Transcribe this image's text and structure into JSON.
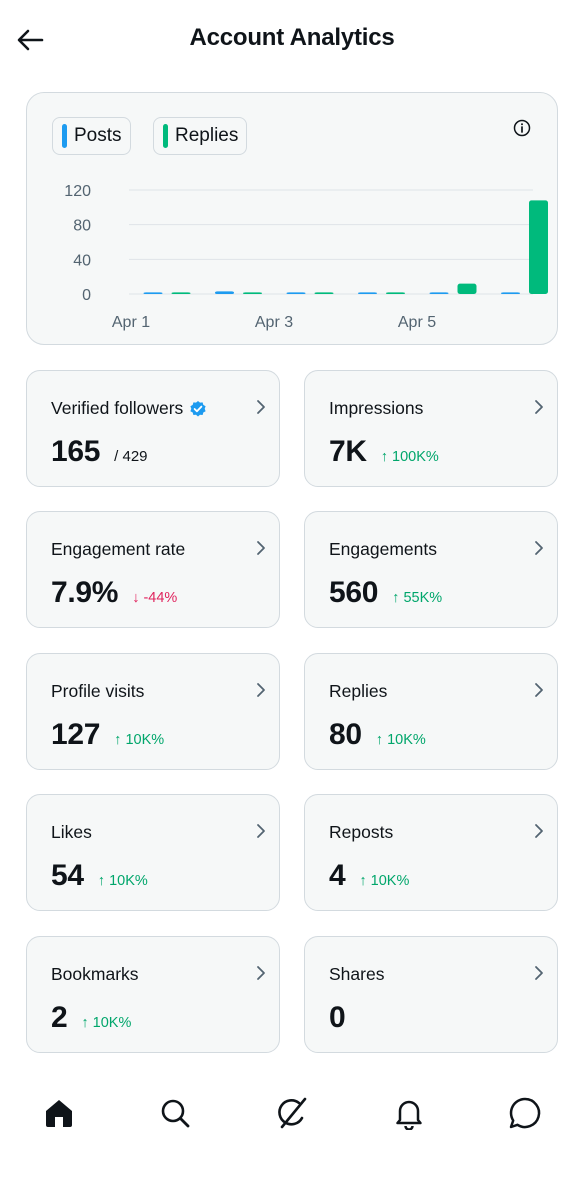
{
  "header": {
    "title": "Account Analytics"
  },
  "chart_data": {
    "type": "bar",
    "categories": [
      "Apr 1",
      "Apr 2",
      "Apr 3",
      "Apr 4",
      "Apr 5",
      "Apr 6"
    ],
    "x_tick_labels": [
      "Apr 1",
      "Apr 3",
      "Apr 5"
    ],
    "y_ticks": [
      0,
      40,
      80,
      120
    ],
    "ylim": [
      0,
      120
    ],
    "series": [
      {
        "name": "Posts",
        "color": "#1d9bf0",
        "values": [
          0,
          3,
          0,
          0,
          1,
          1
        ]
      },
      {
        "name": "Replies",
        "color": "#00ba7c",
        "values": [
          0,
          1,
          0,
          0,
          12,
          108
        ]
      }
    ],
    "grid": true,
    "legend": "top-left"
  },
  "stats": [
    {
      "label": "Verified followers",
      "value": "165",
      "sub": "/ 429",
      "verified": true,
      "delta": "",
      "dir": ""
    },
    {
      "label": "Impressions",
      "value": "7K",
      "delta": "100K%",
      "dir": "up"
    },
    {
      "label": "Engagement rate",
      "value": "7.9%",
      "delta": "-44%",
      "dir": "down"
    },
    {
      "label": "Engagements",
      "value": "560",
      "delta": "55K%",
      "dir": "up"
    },
    {
      "label": "Profile visits",
      "value": "127",
      "delta": "10K%",
      "dir": "up"
    },
    {
      "label": "Replies",
      "value": "80",
      "delta": "10K%",
      "dir": "up"
    },
    {
      "label": "Likes",
      "value": "54",
      "delta": "10K%",
      "dir": "up"
    },
    {
      "label": "Reposts",
      "value": "4",
      "delta": "10K%",
      "dir": "up"
    },
    {
      "label": "Bookmarks",
      "value": "2",
      "delta": "10K%",
      "dir": "up"
    },
    {
      "label": "Shares",
      "value": "0",
      "delta": "",
      "dir": ""
    }
  ],
  "arrows": {
    "up": "↑",
    "down": "↓"
  },
  "nav": [
    {
      "icon": "home-icon"
    },
    {
      "icon": "search-icon"
    },
    {
      "icon": "grok-icon"
    },
    {
      "icon": "bell-icon"
    },
    {
      "icon": "messages-icon"
    }
  ]
}
